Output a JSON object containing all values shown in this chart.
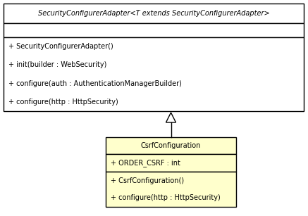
{
  "parent_name": "SecurityConfigurerAdapter<T extends SecurityConfigurerAdapter>",
  "parent_methods": [
    "+ SecurityConfigurerAdapter()",
    "+ init(builder : WebSecurity)",
    "+ configure(auth : AuthenticationManagerBuilder)",
    "+ configure(http : HttpSecurity)"
  ],
  "child_name": "CsrfConfiguration",
  "child_fields": [
    "+ ORDER_CSRF : int"
  ],
  "child_methods": [
    "+ CsrfConfiguration()",
    "+ configure(http : HttpSecurity)"
  ],
  "bg_color": "#ffffff",
  "parent_bg": "#ffffff",
  "child_bg": "#ffffcc",
  "border_color": "#000000",
  "font_size": 7.0
}
